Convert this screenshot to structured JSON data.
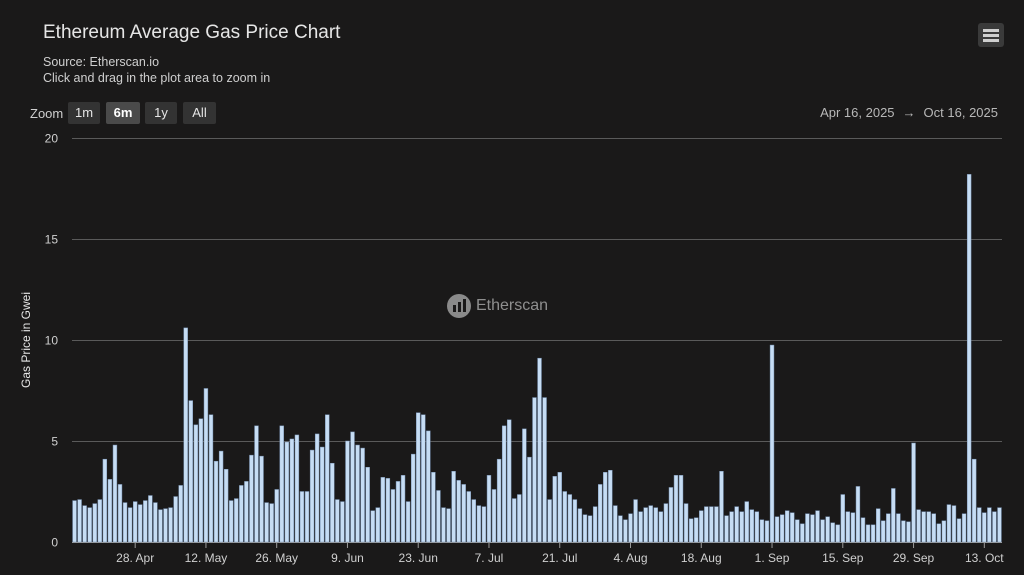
{
  "header": {
    "title": "Ethereum Average Gas Price Chart",
    "source": "Source: Etherscan.io",
    "hint": "Click and drag in the plot area to zoom in"
  },
  "toolbar": {
    "zoom_label": "Zoom",
    "buttons": [
      "1m",
      "6m",
      "1y",
      "All"
    ],
    "active": "6m",
    "range_from": "Apr 16, 2025",
    "range_arrow": "→",
    "range_to": "Oct 16, 2025",
    "menu_icon": "hamburger-menu-icon"
  },
  "watermark": {
    "text": "Etherscan"
  },
  "colors": {
    "background": "#1a1919",
    "bar": "#c6ddf4",
    "bar_edge": "#7b95b6",
    "grid": "#5a5a5a"
  },
  "chart_data": {
    "type": "bar",
    "title": "Ethereum Average Gas Price Chart",
    "ylabel": "Gas Price in Gwei",
    "xlabel": "",
    "ylim": [
      0,
      20
    ],
    "yticks": [
      0,
      5,
      10,
      15,
      20
    ],
    "grid": true,
    "x_start": "2025-04-16",
    "x_end": "2025-10-16",
    "xtick_labels": [
      "28. Apr",
      "12. May",
      "26. May",
      "9. Jun",
      "23. Jun",
      "7. Jul",
      "21. Jul",
      "4. Aug",
      "18. Aug",
      "1. Sep",
      "15. Sep",
      "29. Sep",
      "13. Oct"
    ],
    "xtick_dates": [
      "2025-04-28",
      "2025-05-12",
      "2025-05-26",
      "2025-06-09",
      "2025-06-23",
      "2025-07-07",
      "2025-07-21",
      "2025-08-04",
      "2025-08-18",
      "2025-09-01",
      "2025-09-15",
      "2025-09-29",
      "2025-10-13"
    ],
    "values": [
      2.05,
      2.1,
      1.8,
      1.7,
      1.9,
      2.1,
      4.1,
      3.1,
      4.8,
      2.85,
      1.95,
      1.7,
      2.0,
      1.85,
      2.05,
      2.3,
      1.95,
      1.6,
      1.65,
      1.7,
      2.25,
      2.8,
      10.6,
      7.0,
      5.8,
      6.1,
      7.6,
      6.3,
      4.0,
      4.5,
      3.6,
      2.05,
      2.15,
      2.8,
      3.0,
      4.3,
      5.75,
      4.25,
      1.95,
      1.9,
      2.6,
      5.75,
      4.95,
      5.1,
      5.3,
      2.5,
      2.5,
      4.55,
      5.35,
      4.7,
      6.3,
      3.9,
      2.1,
      2.0,
      5.0,
      5.45,
      4.8,
      4.65,
      3.7,
      1.55,
      1.7,
      3.2,
      3.15,
      2.6,
      3.0,
      3.3,
      2.0,
      4.35,
      6.4,
      6.3,
      5.5,
      3.45,
      2.55,
      1.7,
      1.65,
      3.5,
      3.05,
      2.85,
      2.5,
      2.1,
      1.8,
      1.75,
      3.3,
      2.6,
      4.1,
      5.75,
      6.05,
      2.15,
      2.35,
      5.6,
      4.2,
      7.15,
      9.1,
      7.15,
      2.1,
      3.25,
      3.45,
      2.5,
      2.35,
      2.1,
      1.65,
      1.35,
      1.3,
      1.75,
      2.85,
      3.45,
      3.55,
      1.8,
      1.3,
      1.1,
      1.4,
      2.1,
      1.5,
      1.7,
      1.8,
      1.7,
      1.5,
      1.9,
      2.7,
      3.3,
      3.3,
      1.9,
      1.15,
      1.2,
      1.55,
      1.75,
      1.75,
      1.75,
      3.5,
      1.3,
      1.5,
      1.75,
      1.5,
      2.0,
      1.6,
      1.5,
      1.1,
      1.05,
      9.75,
      1.25,
      1.35,
      1.55,
      1.45,
      1.1,
      0.9,
      1.4,
      1.35,
      1.55,
      1.1,
      1.25,
      0.95,
      0.85,
      2.35,
      1.5,
      1.45,
      2.75,
      1.2,
      0.85,
      0.85,
      1.65,
      1.05,
      1.4,
      2.65,
      1.4,
      1.05,
      1.0,
      4.9,
      1.6,
      1.5,
      1.5,
      1.4,
      0.9,
      1.05,
      1.85,
      1.8,
      1.15,
      1.4,
      18.2,
      4.1,
      1.7,
      1.45,
      1.7,
      1.5,
      1.7
    ]
  }
}
